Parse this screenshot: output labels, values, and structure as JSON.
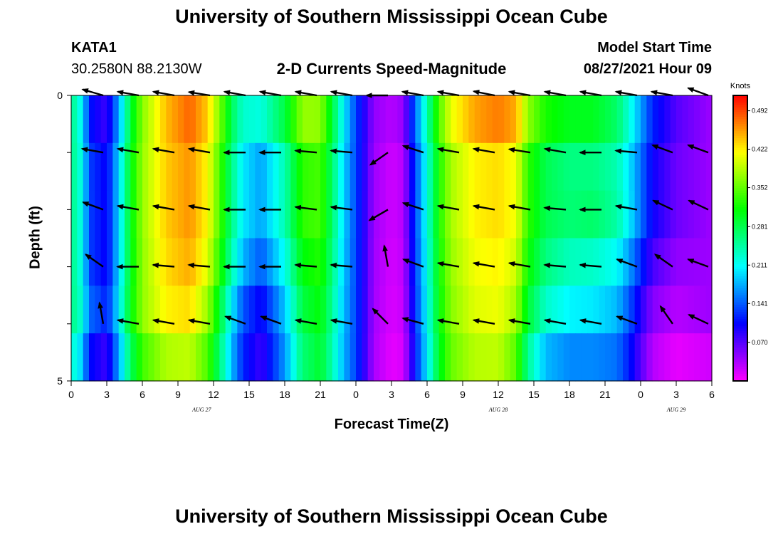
{
  "header": {
    "title": "University of Southern Mississippi Ocean Cube",
    "station": "KATA1",
    "coords": "30.2580N  88.2130W",
    "subtitle": "2-D Currents Speed-Magnitude",
    "model_label": "Model Start Time",
    "model_time": "08/27/2021 Hour 09"
  },
  "footer": {
    "title": "University of Southern Mississippi Ocean Cube"
  },
  "chart_data": {
    "type": "heatmap",
    "title": "2-D Currents Speed-Magnitude",
    "xlabel": "Forecast Time(Z)",
    "ylabel": "Depth (ft)",
    "units": "Knots",
    "x_hours": [
      0,
      3,
      6,
      9,
      12,
      15,
      18,
      21,
      24,
      27,
      30,
      33,
      36,
      39,
      42,
      45,
      48,
      51,
      54
    ],
    "x_tick_labels": [
      "0",
      "3",
      "6",
      "9",
      "12",
      "15",
      "18",
      "21",
      "0",
      "3",
      "6",
      "9",
      "12",
      "15",
      "18",
      "21",
      "0",
      "3",
      "6"
    ],
    "date_labels": [
      {
        "hour": 11,
        "text": "AUG 27"
      },
      {
        "hour": 36,
        "text": "AUG 28"
      },
      {
        "hour": 51,
        "text": "AUG 29"
      }
    ],
    "y_tick_labels": [
      "0",
      "5"
    ],
    "ylim": [
      0,
      5
    ],
    "colorbar_ticks": [
      "0.492",
      "0.422",
      "0.352",
      "0.281",
      "0.211",
      "0.141",
      "0.070"
    ],
    "colorbar_range": [
      0,
      0.52
    ],
    "speed_profile": [
      {
        "hour": 0,
        "speed": 0.26
      },
      {
        "hour": 1,
        "speed": 0.21
      },
      {
        "hour": 1.5,
        "speed": 0.13
      },
      {
        "hour": 3,
        "speed": 0.1
      },
      {
        "hour": 4,
        "speed": 0.19
      },
      {
        "hour": 5,
        "speed": 0.3
      },
      {
        "hour": 6,
        "speed": 0.37
      },
      {
        "hour": 8,
        "speed": 0.43
      },
      {
        "hour": 10,
        "speed": 0.45
      },
      {
        "hour": 11.5,
        "speed": 0.41
      },
      {
        "hour": 12.5,
        "speed": 0.34
      },
      {
        "hour": 13.5,
        "speed": 0.26
      },
      {
        "hour": 14.5,
        "speed": 0.2
      },
      {
        "hour": 16,
        "speed": 0.17
      },
      {
        "hour": 18,
        "speed": 0.24
      },
      {
        "hour": 19.5,
        "speed": 0.33
      },
      {
        "hour": 21,
        "speed": 0.34
      },
      {
        "hour": 22,
        "speed": 0.27
      },
      {
        "hour": 23,
        "speed": 0.19
      },
      {
        "hour": 24.5,
        "speed": 0.1
      },
      {
        "hour": 25.5,
        "speed": 0.04
      },
      {
        "hour": 27,
        "speed": 0.02
      },
      {
        "hour": 28,
        "speed": 0.03
      },
      {
        "hour": 29,
        "speed": 0.13
      },
      {
        "hour": 30,
        "speed": 0.22
      },
      {
        "hour": 31,
        "speed": 0.32
      },
      {
        "hour": 32,
        "speed": 0.38
      },
      {
        "hour": 34,
        "speed": 0.42
      },
      {
        "hour": 36,
        "speed": 0.43
      },
      {
        "hour": 37.5,
        "speed": 0.41
      },
      {
        "hour": 38.5,
        "speed": 0.33
      },
      {
        "hour": 40,
        "speed": 0.28
      },
      {
        "hour": 42,
        "speed": 0.26
      },
      {
        "hour": 44,
        "speed": 0.26
      },
      {
        "hour": 46,
        "speed": 0.24
      },
      {
        "hour": 47,
        "speed": 0.2
      },
      {
        "hour": 48,
        "speed": 0.15
      },
      {
        "hour": 49,
        "speed": 0.1
      },
      {
        "hour": 51,
        "speed": 0.06
      },
      {
        "hour": 54,
        "speed": 0.04
      }
    ],
    "depth_modifiers": [
      [
        [
          0,
          0
        ],
        [
          2,
          -0.02
        ],
        [
          4,
          -0.02
        ],
        [
          10,
          0.03
        ],
        [
          14,
          0.02
        ],
        [
          16,
          0.05
        ],
        [
          20,
          0.04
        ],
        [
          24,
          0
        ],
        [
          36,
          0.04
        ],
        [
          40,
          0.04
        ],
        [
          44,
          0.04
        ],
        [
          48,
          0.02
        ],
        [
          54,
          0
        ]
      ],
      [
        [
          0,
          0
        ],
        [
          2,
          0
        ],
        [
          4,
          0
        ],
        [
          10,
          0.01
        ],
        [
          14,
          0
        ],
        [
          16,
          0
        ],
        [
          20,
          0
        ],
        [
          24,
          0
        ],
        [
          36,
          0
        ],
        [
          40,
          0
        ],
        [
          44,
          0
        ],
        [
          48,
          0
        ],
        [
          54,
          0
        ]
      ],
      [
        [
          0,
          0
        ],
        [
          2,
          0
        ],
        [
          4,
          0
        ],
        [
          10,
          0.01
        ],
        [
          14,
          0
        ],
        [
          16,
          0
        ],
        [
          20,
          0
        ],
        [
          24,
          0
        ],
        [
          36,
          0
        ],
        [
          40,
          0
        ],
        [
          44,
          0.01
        ],
        [
          48,
          0
        ],
        [
          54,
          0
        ]
      ],
      [
        [
          0,
          0
        ],
        [
          2,
          0
        ],
        [
          4,
          0
        ],
        [
          10,
          0
        ],
        [
          14,
          -0.02
        ],
        [
          16,
          -0.03
        ],
        [
          20,
          -0.02
        ],
        [
          24,
          0
        ],
        [
          36,
          -0.01
        ],
        [
          40,
          -0.02
        ],
        [
          44,
          -0.03
        ],
        [
          48,
          -0.03
        ],
        [
          54,
          0
        ]
      ],
      [
        [
          0,
          0
        ],
        [
          2,
          0.02
        ],
        [
          4,
          0.01
        ],
        [
          10,
          -0.02
        ],
        [
          14,
          -0.06
        ],
        [
          16,
          -0.07
        ],
        [
          20,
          -0.04
        ],
        [
          24,
          0
        ],
        [
          36,
          -0.02
        ],
        [
          40,
          -0.05
        ],
        [
          44,
          -0.06
        ],
        [
          48,
          -0.06
        ],
        [
          54,
          0
        ]
      ],
      [
        [
          0,
          -0.03
        ],
        [
          2,
          -0.02
        ],
        [
          4,
          -0.02
        ],
        [
          10,
          -0.06
        ],
        [
          14,
          -0.08
        ],
        [
          16,
          -0.09
        ],
        [
          20,
          -0.06
        ],
        [
          24,
          0
        ],
        [
          36,
          -0.04
        ],
        [
          40,
          -0.1
        ],
        [
          44,
          -0.1
        ],
        [
          48,
          -0.08
        ],
        [
          54,
          -0.02
        ]
      ]
    ],
    "vector_hours": [
      1.5,
      4.5,
      7.5,
      10.5,
      13.5,
      16.5,
      19.5,
      22.5,
      25.5,
      28.5,
      31.5,
      34.5,
      37.5,
      40.5,
      43.5,
      46.5,
      49.5,
      52.5
    ],
    "vector_depths": [
      0,
      1,
      2,
      3,
      4
    ],
    "vector_directions_deg": [
      [
        196,
        190,
        190,
        189,
        190,
        190,
        190,
        190,
        180,
        190,
        190,
        191,
        190,
        190,
        190,
        190,
        190,
        200
      ],
      [
        190,
        190,
        190,
        190,
        180,
        180,
        185,
        185,
        145,
        198,
        190,
        190,
        189,
        190,
        180,
        185,
        200,
        200
      ],
      [
        200,
        190,
        190,
        190,
        180,
        180,
        187,
        187,
        150,
        198,
        190,
        190,
        190,
        185,
        180,
        190,
        205,
        205
      ],
      [
        215,
        180,
        185,
        185,
        180,
        180,
        185,
        185,
        260,
        200,
        190,
        190,
        190,
        185,
        185,
        200,
        215,
        200
      ],
      [
        260,
        190,
        190,
        190,
        200,
        200,
        190,
        190,
        225,
        195,
        190,
        190,
        190,
        190,
        190,
        200,
        235,
        205
      ]
    ]
  }
}
